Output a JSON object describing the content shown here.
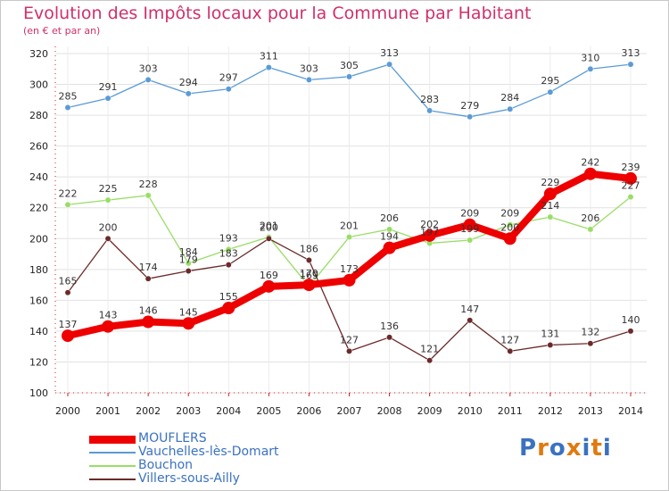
{
  "title": "Evolution des Impôts locaux pour la Commune par Habitant",
  "subtitle": "(en € et par an)",
  "logo": "Proxiti",
  "chart_data": {
    "type": "line",
    "x": [
      2000,
      2001,
      2002,
      2003,
      2004,
      2005,
      2006,
      2007,
      2008,
      2009,
      2010,
      2011,
      2012,
      2013,
      2014
    ],
    "xtick_labels": [
      "2000",
      "2001",
      "2002",
      "2003",
      "2004",
      "2005",
      "2006",
      "2007",
      "2008",
      "2009",
      "2010",
      "2011",
      "2012",
      "2013",
      "2014"
    ],
    "ylim": [
      100,
      320
    ],
    "yticks": [
      100,
      120,
      140,
      160,
      180,
      200,
      220,
      240,
      260,
      280,
      300,
      320
    ],
    "grid": true,
    "legend_position": "bottom-left",
    "series": [
      {
        "name": "Vauchelles-lès-Domart",
        "color": "#5b9bd5",
        "values": [
          285,
          291,
          303,
          294,
          297,
          311,
          303,
          305,
          313,
          283,
          279,
          284,
          295,
          310,
          313
        ]
      },
      {
        "name": "Bouchon",
        "color": "#99dd66",
        "values": [
          222,
          225,
          228,
          184,
          193,
          201,
          169,
          201,
          206,
          197,
          199,
          209,
          214,
          206,
          227
        ]
      },
      {
        "name": "Villers-sous-Ailly",
        "color": "#6b2a2a",
        "values": [
          165,
          200,
          174,
          179,
          183,
          200,
          186,
          127,
          136,
          121,
          147,
          127,
          131,
          132,
          140
        ]
      },
      {
        "name": "MOUFLERS",
        "color": "#ee0000",
        "values": [
          137,
          143,
          146,
          145,
          155,
          169,
          170,
          173,
          194,
          202,
          209,
          200,
          229,
          242,
          239
        ]
      }
    ]
  }
}
